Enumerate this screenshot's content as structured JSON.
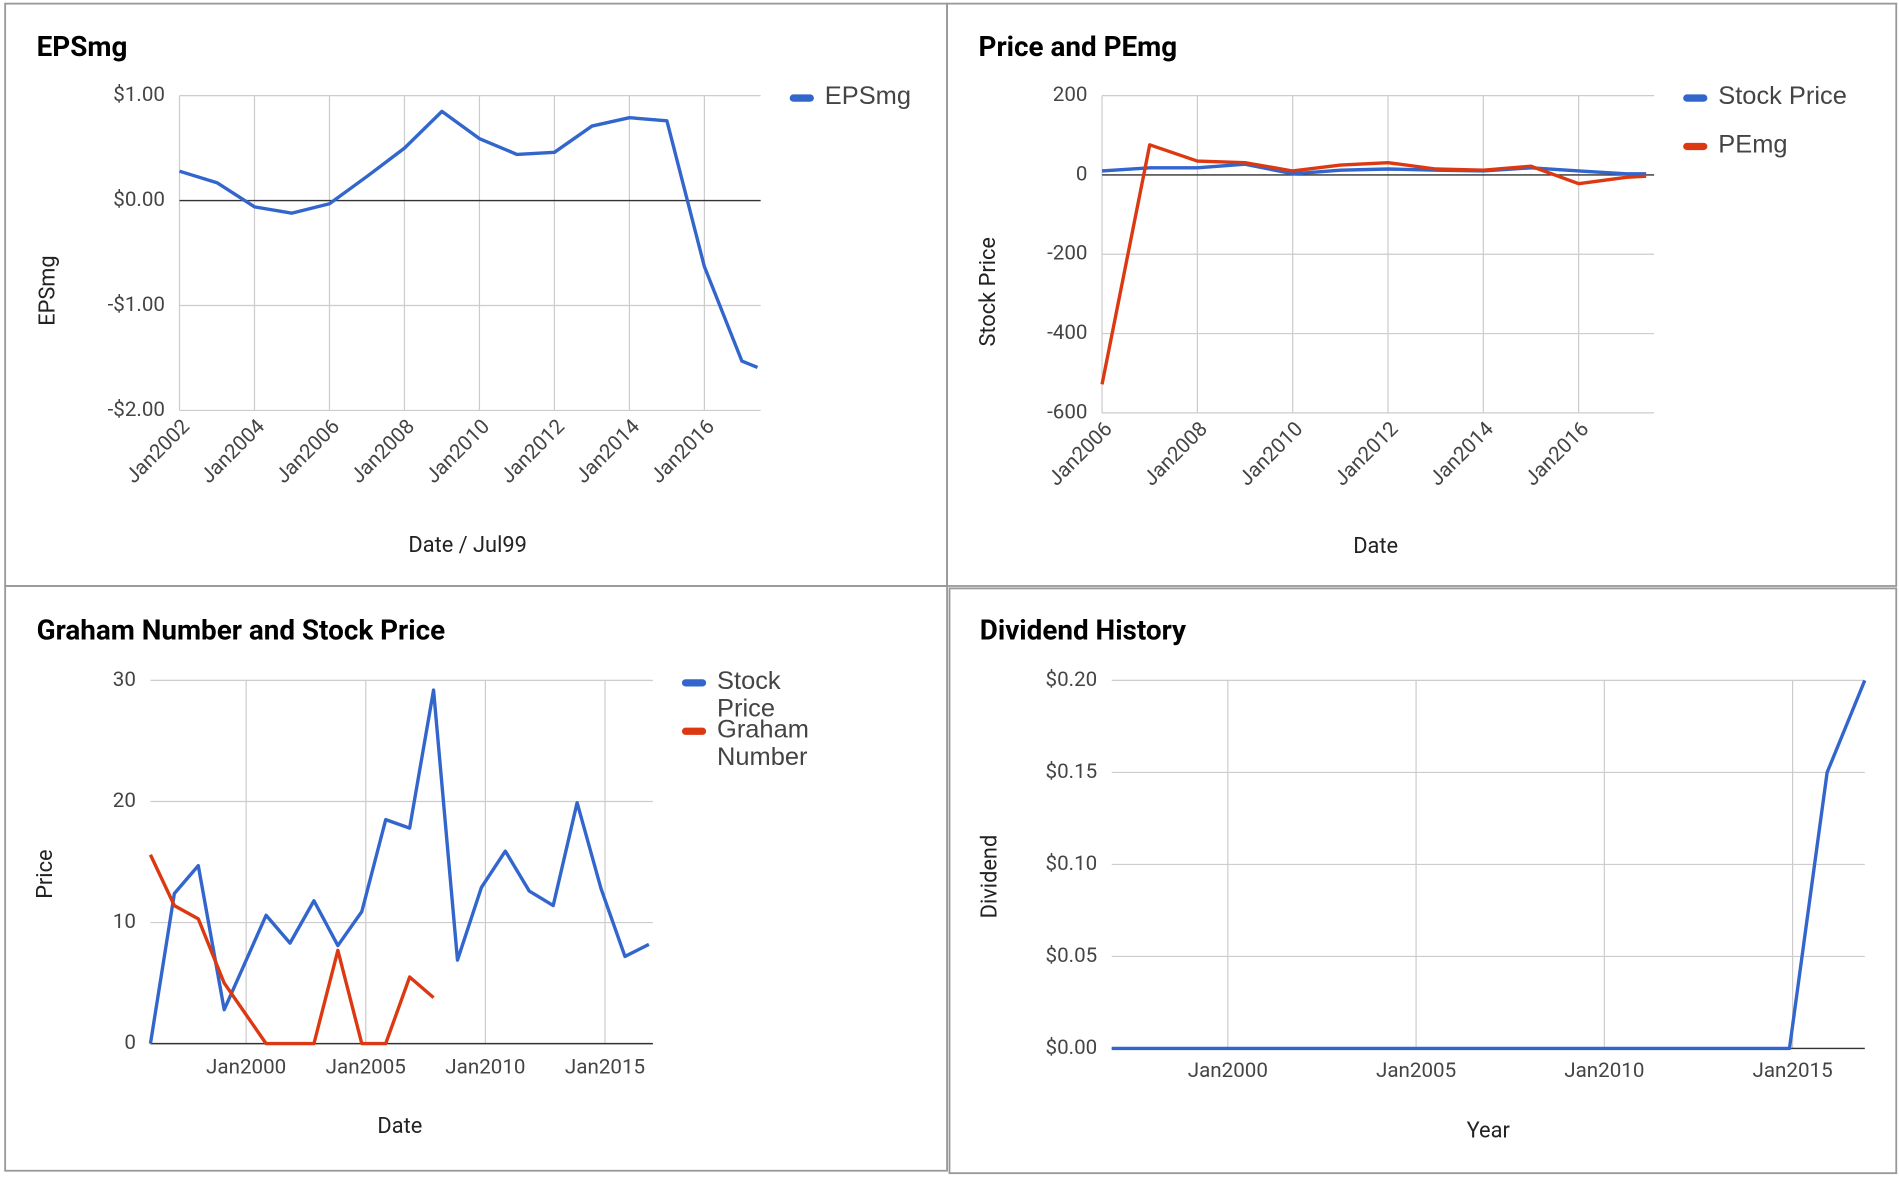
{
  "chart_data": [
    {
      "type": "line",
      "title": "EPSmg",
      "x_label": "Date / Jul99",
      "y_label": "EPSmg",
      "x": [
        "2002-01",
        "2003-01",
        "2004-01",
        "2005-01",
        "2006-01",
        "2007-01",
        "2008-01",
        "2009-01",
        "2010-01",
        "2011-01",
        "2012-01",
        "2013-01",
        "2014-01",
        "2015-01",
        "2016-01",
        "2017-01",
        "2017-06"
      ],
      "series": [
        {
          "name": "EPSmg",
          "color": "#3366cc",
          "values": [
            0.28,
            0.17,
            -0.06,
            -0.12,
            -0.03,
            0.23,
            0.5,
            0.85,
            0.59,
            0.44,
            0.46,
            0.71,
            0.79,
            0.76,
            -0.63,
            -1.53,
            -1.59
          ]
        }
      ],
      "xlim": [
        "2002-01",
        "2017-07"
      ],
      "xticks": [
        {
          "value": "2002-01",
          "label": "Jan2002"
        },
        {
          "value": "2004-01",
          "label": "Jan2004"
        },
        {
          "value": "2006-01",
          "label": "Jan2006"
        },
        {
          "value": "2008-01",
          "label": "Jan2008"
        },
        {
          "value": "2010-01",
          "label": "Jan2010"
        },
        {
          "value": "2012-01",
          "label": "Jan2012"
        },
        {
          "value": "2014-01",
          "label": "Jan2014"
        },
        {
          "value": "2016-01",
          "label": "Jan2016"
        }
      ],
      "ylim": [
        -2,
        1
      ],
      "yticks": [
        {
          "value": 1,
          "label": "$1.00"
        },
        {
          "value": 0,
          "label": "$0.00"
        },
        {
          "value": -1,
          "label": "-$1.00"
        },
        {
          "value": -2,
          "label": "-$2.00"
        }
      ],
      "grid": true,
      "legend": "right"
    },
    {
      "type": "line",
      "title": "Price and PEmg",
      "x_label": "Date",
      "y_label": "Stock Price",
      "x": [
        "2006-01",
        "2007-01",
        "2008-01",
        "2009-01",
        "2010-01",
        "2011-01",
        "2012-01",
        "2013-01",
        "2014-01",
        "2015-01",
        "2016-01",
        "2017-01",
        "2017-06"
      ],
      "series": [
        {
          "name": "Stock Price",
          "color": "#3366cc",
          "values": [
            10,
            18,
            18,
            27,
            3,
            12,
            15,
            12,
            10,
            18,
            10,
            3,
            3
          ]
        },
        {
          "name": "PEmg",
          "color": "#dc3912",
          "values": [
            -528,
            76,
            35,
            31,
            10,
            25,
            31,
            15,
            12,
            22,
            -22,
            -6,
            -3
          ]
        }
      ],
      "xlim": [
        "2006-01",
        "2017-08"
      ],
      "xticks": [
        {
          "value": "2006-01",
          "label": "Jan2006"
        },
        {
          "value": "2008-01",
          "label": "Jan2008"
        },
        {
          "value": "2010-01",
          "label": "Jan2010"
        },
        {
          "value": "2012-01",
          "label": "Jan2012"
        },
        {
          "value": "2014-01",
          "label": "Jan2014"
        },
        {
          "value": "2016-01",
          "label": "Jan2016"
        }
      ],
      "ylim": [
        -600,
        200
      ],
      "yticks": [
        200,
        0,
        -200,
        -400,
        -600
      ],
      "grid": true,
      "legend": "right"
    },
    {
      "type": "line",
      "title": "Graham Number and Stock Price",
      "x_label": "Date",
      "y_label": "Price",
      "x": [
        "1996-01",
        "1997-01",
        "1998-01",
        "1999-02",
        "2000-11",
        "2001-11",
        "2002-11",
        "2003-11",
        "2004-11",
        "2005-11",
        "2006-11",
        "2007-11",
        "2008-11",
        "2009-11",
        "2010-11",
        "2011-11",
        "2012-11",
        "2013-11",
        "2014-11",
        "2015-11",
        "2016-11"
      ],
      "series": [
        {
          "name": "Stock Price",
          "color": "#3366cc",
          "values": [
            0,
            12.4,
            14.7,
            2.8,
            10.6,
            8.3,
            11.8,
            8.1,
            10.9,
            18.5,
            17.8,
            29.2,
            6.9,
            12.9,
            15.9,
            12.6,
            11.4,
            19.9,
            12.8,
            7.2,
            8.2
          ]
        },
        {
          "name": "Graham Number",
          "color": "#dc3912",
          "values": [
            15.6,
            11.4,
            10.3,
            5.0,
            0,
            0,
            0,
            7.7,
            0,
            0,
            5.5,
            3.8,
            null,
            null,
            null,
            null,
            null,
            null,
            null,
            null,
            null
          ]
        }
      ],
      "xlim": [
        "1996-01",
        "2017-01"
      ],
      "xticks": [
        {
          "value": "2000-01",
          "label": "Jan2000"
        },
        {
          "value": "2005-01",
          "label": "Jan2005"
        },
        {
          "value": "2010-01",
          "label": "Jan2010"
        },
        {
          "value": "2015-01",
          "label": "Jan2015"
        }
      ],
      "ylim": [
        0,
        30
      ],
      "yticks": [
        30,
        20,
        10,
        0
      ],
      "grid": true,
      "legend": "right"
    },
    {
      "type": "line",
      "title": "Dividend History",
      "x_label": "Year",
      "y_label": "Dividend",
      "x": [
        "1996-12",
        "1997-12",
        "1998-12",
        "1999-12",
        "2000-12",
        "2001-12",
        "2002-12",
        "2003-12",
        "2004-12",
        "2005-12",
        "2006-12",
        "2007-12",
        "2008-12",
        "2009-12",
        "2010-12",
        "2011-12",
        "2012-12",
        "2013-12",
        "2014-12",
        "2015-12",
        "2016-12"
      ],
      "series": [
        {
          "name": "Dividend",
          "color": "#3366cc",
          "values": [
            0,
            0,
            0,
            0,
            0,
            0,
            0,
            0,
            0,
            0,
            0,
            0,
            0,
            0,
            0,
            0,
            0,
            0,
            0,
            0.15,
            0.2
          ]
        }
      ],
      "xlim": [
        "1996-12",
        "2016-12"
      ],
      "xticks": [
        {
          "value": "2000-01",
          "label": "Jan2000"
        },
        {
          "value": "2005-01",
          "label": "Jan2005"
        },
        {
          "value": "2010-01",
          "label": "Jan2010"
        },
        {
          "value": "2015-01",
          "label": "Jan2015"
        }
      ],
      "ylim": [
        0,
        0.2
      ],
      "yticks": [
        {
          "value": 0.2,
          "label": "$0.20"
        },
        {
          "value": 0.15,
          "label": "$0.15"
        },
        {
          "value": 0.1,
          "label": "$0.10"
        },
        {
          "value": 0.05,
          "label": "$0.05"
        },
        {
          "value": 0,
          "label": "$0.00"
        }
      ],
      "grid": true,
      "legend": "none"
    }
  ]
}
